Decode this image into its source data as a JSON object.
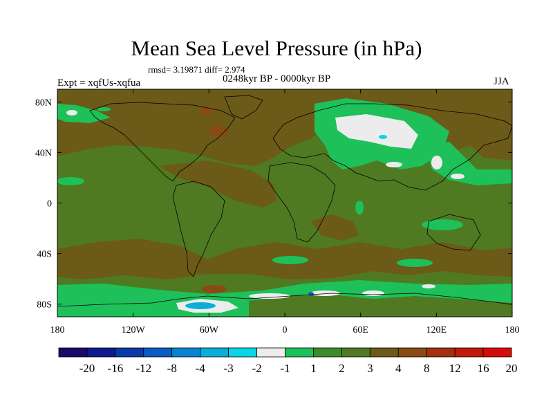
{
  "title": "Mean Sea Level Pressure (in hPa)",
  "stats": "rmsd= 3.19871 diff= 2.974",
  "expt_label": "Expt = xqfUs-xqfua",
  "period_label": "0248kyr BP - 0000kyr BP",
  "season_label": "JJA",
  "map": {
    "lon_range": [
      -180,
      180
    ],
    "lat_range": [
      -90,
      90
    ],
    "lat_ticks": [
      {
        "value": 80,
        "label": "80N"
      },
      {
        "value": 40,
        "label": "40N"
      },
      {
        "value": 0,
        "label": "0"
      },
      {
        "value": -40,
        "label": "40S"
      },
      {
        "value": -80,
        "label": "80S"
      }
    ],
    "lon_ticks": [
      {
        "value": -180,
        "label": "180"
      },
      {
        "value": -120,
        "label": "120W"
      },
      {
        "value": -60,
        "label": "60W"
      },
      {
        "value": 0,
        "label": "0"
      },
      {
        "value": 60,
        "label": "60E"
      },
      {
        "value": 120,
        "label": "120E"
      },
      {
        "value": 180,
        "label": "180"
      }
    ]
  },
  "colorbar": {
    "labels": [
      "-20",
      "-16",
      "-12",
      "-8",
      "-4",
      "-3",
      "-2",
      "-1",
      "1",
      "2",
      "3",
      "4",
      "8",
      "12",
      "16",
      "20"
    ],
    "colors": [
      "#1a0a6b",
      "#0f1a8c",
      "#0a3aa8",
      "#0a5cc0",
      "#0a84d0",
      "#0aaed8",
      "#0cd6e6",
      "#ececec",
      "#1ec05a",
      "#3c8c2e",
      "#4f7a22",
      "#6b5a18",
      "#8a4a14",
      "#a4300f",
      "#c01a0c",
      "#d40c0a"
    ]
  }
}
